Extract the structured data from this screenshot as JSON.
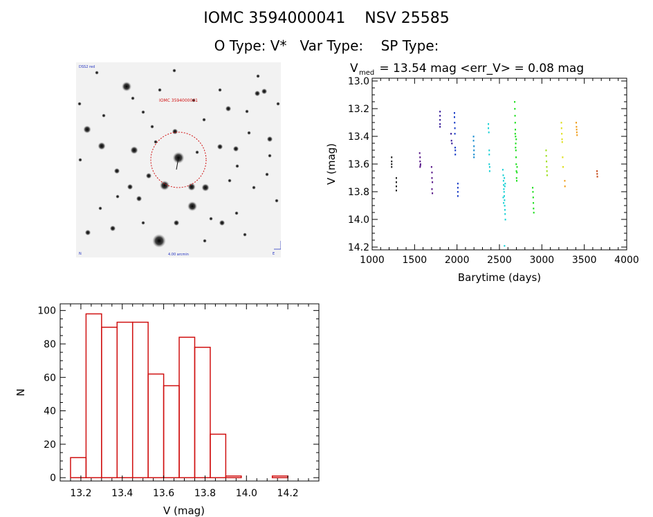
{
  "header": {
    "title_line1": "IOMC 3594000041    NSV 25585",
    "title_line2": "O Type: V*   Var Type:    SP Type:"
  },
  "chart_data": [
    {
      "type": "scatter",
      "title_main": "V",
      "title_sub": "med",
      "title_rest": " = 13.54 mag <err_V> = 0.08 mag",
      "xlabel": "Barytime (days)",
      "ylabel": "V (mag)",
      "xlim": [
        1000,
        4000
      ],
      "ylim": [
        14.22,
        12.98
      ],
      "y_inverted": true,
      "xticks": [
        1000,
        1500,
        2000,
        2500,
        3000,
        3500,
        4000
      ],
      "yticks": [
        13.0,
        13.2,
        13.4,
        13.6,
        13.8,
        14.0,
        14.2
      ],
      "ytick_labels": [
        "13.0",
        "13.2",
        "13.4",
        "13.6",
        "13.8",
        "14.0",
        "14.2"
      ],
      "series": [
        {
          "color": "#222222",
          "points": [
            [
              1230,
              13.55
            ],
            [
              1230,
              13.58
            ],
            [
              1230,
              13.6
            ],
            [
              1230,
              13.62
            ],
            [
              1285,
              13.7
            ],
            [
              1285,
              13.73
            ],
            [
              1285,
              13.76
            ],
            [
              1285,
              13.79
            ]
          ]
        },
        {
          "color": "#5a1a8a",
          "points": [
            [
              1560,
              13.52
            ],
            [
              1565,
              13.55
            ],
            [
              1565,
              13.58
            ],
            [
              1570,
              13.6
            ],
            [
              1565,
              13.62
            ],
            [
              1568,
              13.61
            ],
            [
              1700,
              13.62
            ],
            [
              1705,
              13.66
            ],
            [
              1705,
              13.7
            ],
            [
              1710,
              13.73
            ],
            [
              1705,
              13.78
            ],
            [
              1710,
              13.81
            ]
          ]
        },
        {
          "color": "#3a1f9a",
          "points": [
            [
              1800,
              13.22
            ],
            [
              1800,
              13.25
            ],
            [
              1800,
              13.28
            ],
            [
              1800,
              13.31
            ],
            [
              1800,
              13.33
            ],
            [
              1930,
              13.38
            ],
            [
              1935,
              13.43
            ],
            [
              1940,
              13.45
            ]
          ]
        },
        {
          "color": "#1c3fc8",
          "points": [
            [
              1970,
              13.23
            ],
            [
              1970,
              13.26
            ],
            [
              1972,
              13.3
            ],
            [
              1975,
              13.34
            ],
            [
              1975,
              13.38
            ],
            [
              1978,
              13.48
            ],
            [
              1980,
              13.5
            ],
            [
              1980,
              13.53
            ],
            [
              2010,
              13.74
            ],
            [
              2010,
              13.77
            ],
            [
              2010,
              13.8
            ],
            [
              2010,
              13.83
            ]
          ]
        },
        {
          "color": "#1e8fd0",
          "points": [
            [
              2195,
              13.4
            ],
            [
              2195,
              13.43
            ],
            [
              2200,
              13.47
            ],
            [
              2200,
              13.5
            ],
            [
              2200,
              13.53
            ],
            [
              2200,
              13.55
            ]
          ]
        },
        {
          "color": "#1ed2d6",
          "points": [
            [
              2370,
              13.31
            ],
            [
              2370,
              13.34
            ],
            [
              2375,
              13.37
            ],
            [
              2380,
              13.5
            ],
            [
              2380,
              13.53
            ],
            [
              2380,
              13.6
            ],
            [
              2385,
              13.62
            ],
            [
              2385,
              13.65
            ],
            [
              2540,
              13.64
            ],
            [
              2545,
              13.68
            ],
            [
              2548,
              13.72
            ],
            [
              2550,
              13.75
            ],
            [
              2552,
              13.78
            ],
            [
              2555,
              13.8
            ],
            [
              2557,
              13.83
            ],
            [
              2560,
              13.86
            ],
            [
              2562,
              13.9
            ],
            [
              2565,
              13.93
            ],
            [
              2567,
              13.96
            ],
            [
              2570,
              14.0
            ],
            [
              2558,
              13.7
            ],
            [
              2563,
              13.76
            ],
            [
              2545,
              13.84
            ],
            [
              2568,
              13.74
            ],
            [
              2550,
              13.88
            ],
            [
              2560,
              14.19
            ]
          ]
        },
        {
          "color": "#22e022",
          "points": [
            [
              2680,
              13.15
            ],
            [
              2682,
              13.2
            ],
            [
              2684,
              13.25
            ],
            [
              2686,
              13.3
            ],
            [
              2688,
              13.35
            ],
            [
              2690,
              13.4
            ],
            [
              2692,
              13.45
            ],
            [
              2694,
              13.5
            ],
            [
              2696,
              13.55
            ],
            [
              2698,
              13.6
            ],
            [
              2700,
              13.65
            ],
            [
              2702,
              13.7
            ],
            [
              2704,
              13.72
            ],
            [
              2706,
              13.66
            ],
            [
              2708,
              13.62
            ],
            [
              2698,
              13.42
            ],
            [
              2690,
              13.48
            ],
            [
              2686,
              13.38
            ],
            [
              2892,
              13.77
            ],
            [
              2895,
              13.8
            ],
            [
              2898,
              13.84
            ],
            [
              2900,
              13.88
            ],
            [
              2902,
              13.92
            ],
            [
              2905,
              13.95
            ]
          ]
        },
        {
          "color": "#a0e020",
          "points": [
            [
              3050,
              13.5
            ],
            [
              3052,
              13.54
            ],
            [
              3055,
              13.58
            ],
            [
              3058,
              13.62
            ],
            [
              3060,
              13.65
            ],
            [
              3062,
              13.68
            ]
          ]
        },
        {
          "color": "#e0e020",
          "points": [
            [
              3230,
              13.3
            ],
            [
              3232,
              13.34
            ],
            [
              3235,
              13.38
            ],
            [
              3238,
              13.42
            ],
            [
              3240,
              13.44
            ],
            [
              3245,
              13.55
            ],
            [
              3250,
              13.62
            ]
          ]
        },
        {
          "color": "#f0a020",
          "points": [
            [
              3270,
              13.72
            ],
            [
              3272,
              13.76
            ],
            [
              3405,
              13.3
            ],
            [
              3408,
              13.33
            ],
            [
              3410,
              13.35
            ],
            [
              3412,
              13.37
            ],
            [
              3415,
              13.39
            ]
          ]
        },
        {
          "color": "#c85020",
          "points": [
            [
              3650,
              13.65
            ],
            [
              3652,
              13.67
            ],
            [
              3654,
              13.69
            ]
          ]
        }
      ]
    },
    {
      "type": "bar",
      "xlabel": "V (mag)",
      "ylabel": "N",
      "xlim": [
        13.1,
        14.35
      ],
      "ylim": [
        -2,
        104
      ],
      "xticks": [
        13.2,
        13.4,
        13.6,
        13.8,
        14.0,
        14.2
      ],
      "xtick_labels": [
        "13.2",
        "13.4",
        "13.6",
        "13.8",
        "14.0",
        "14.2"
      ],
      "yticks": [
        0,
        20,
        40,
        60,
        80,
        100
      ],
      "bin_edges": [
        13.15,
        13.225,
        13.3,
        13.375,
        13.45,
        13.525,
        13.6,
        13.675,
        13.75,
        13.825,
        13.9,
        13.975,
        14.05
      ],
      "values": [
        12,
        98,
        90,
        93,
        93,
        62,
        55,
        84,
        78,
        26,
        1,
        0
      ],
      "extra_bins": [
        {
          "from": 14.125,
          "to": 14.2,
          "value": 1
        }
      ],
      "color": "#d01010"
    }
  ],
  "finder": {
    "label_top": "IOMC 3594000041",
    "label_corner_tl": "DSS2 red",
    "label_bottom": "4.00 arcmin",
    "label_corner_bl": "N",
    "label_corner_br": "E",
    "circle_color": "#d01010"
  }
}
